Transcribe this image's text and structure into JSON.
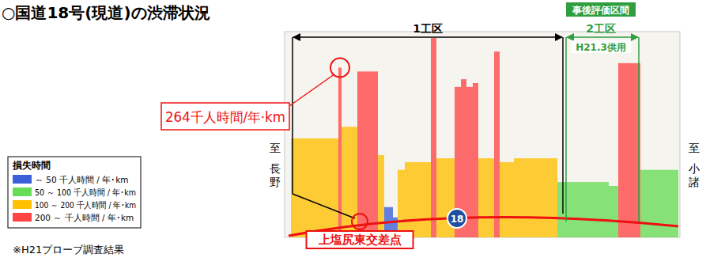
{
  "chart_data": {
    "type": "bar",
    "title": "○国道18号(現道)の渋滞状況",
    "bins": [
      8,
      68,
      72,
      92,
      118,
      126,
      137,
      143,
      152,
      185,
      192,
      215,
      223,
      230,
      238,
      245,
      265,
      272,
      290,
      345,
      410,
      422,
      450,
      498
    ],
    "values": [
      154,
      264,
      172,
      258,
      128,
      47,
      31,
      105,
      117,
      310,
      123,
      234,
      246,
      234,
      240,
      123,
      289,
      117,
      123,
      86,
      80,
      271,
      105
    ],
    "colors": [
      "#ffc000",
      "#ff4444",
      "#ffc000",
      "#ff4444",
      "#ffc000",
      "#3a5fd8",
      "#3a5fd8",
      "#ffc000",
      "#ffc000",
      "#ff4444",
      "#ffc000",
      "#ff4444",
      "#ff4444",
      "#ff4444",
      "#ff4444",
      "#ffc000",
      "#ff4444",
      "#ffc000",
      "#ffc000",
      "#66dd55",
      "#66dd55",
      "#ff4444",
      "#66dd55"
    ],
    "xlim": [
      0,
      500
    ],
    "ylim": [
      0,
      320
    ],
    "tick_labels": false,
    "grid": false,
    "legend": "left",
    "legend_title": "損失時間",
    "legend_items": [
      {
        "label": "～ 50 千人時間 / 年･km",
        "color": "#3a5fd8"
      },
      {
        "label": "50 ～ 100 千人時間 / 年･km",
        "color": "#66dd55"
      },
      {
        "label": "100 ～ 200 千人時間 / 年･km",
        "color": "#ffc000"
      },
      {
        "label": "200 ～ 千人時間 / 年･km",
        "color": "#ff4444"
      }
    ],
    "note": "※H21プローブ調査結果",
    "callout": {
      "text": "264千人時間/年·km",
      "x": 70,
      "y": 264
    },
    "intersection": {
      "text": "上塩尻東交差点",
      "x": 95
    },
    "sections": [
      {
        "name": "1工区",
        "start": 10,
        "end": 352
      },
      {
        "name": "2工区",
        "start": 352,
        "end": 448,
        "note": "H21.3供用",
        "tag": "事後評価区間"
      }
    ],
    "ends": {
      "left": "至長野",
      "right": "至小諸"
    },
    "route": "18"
  }
}
